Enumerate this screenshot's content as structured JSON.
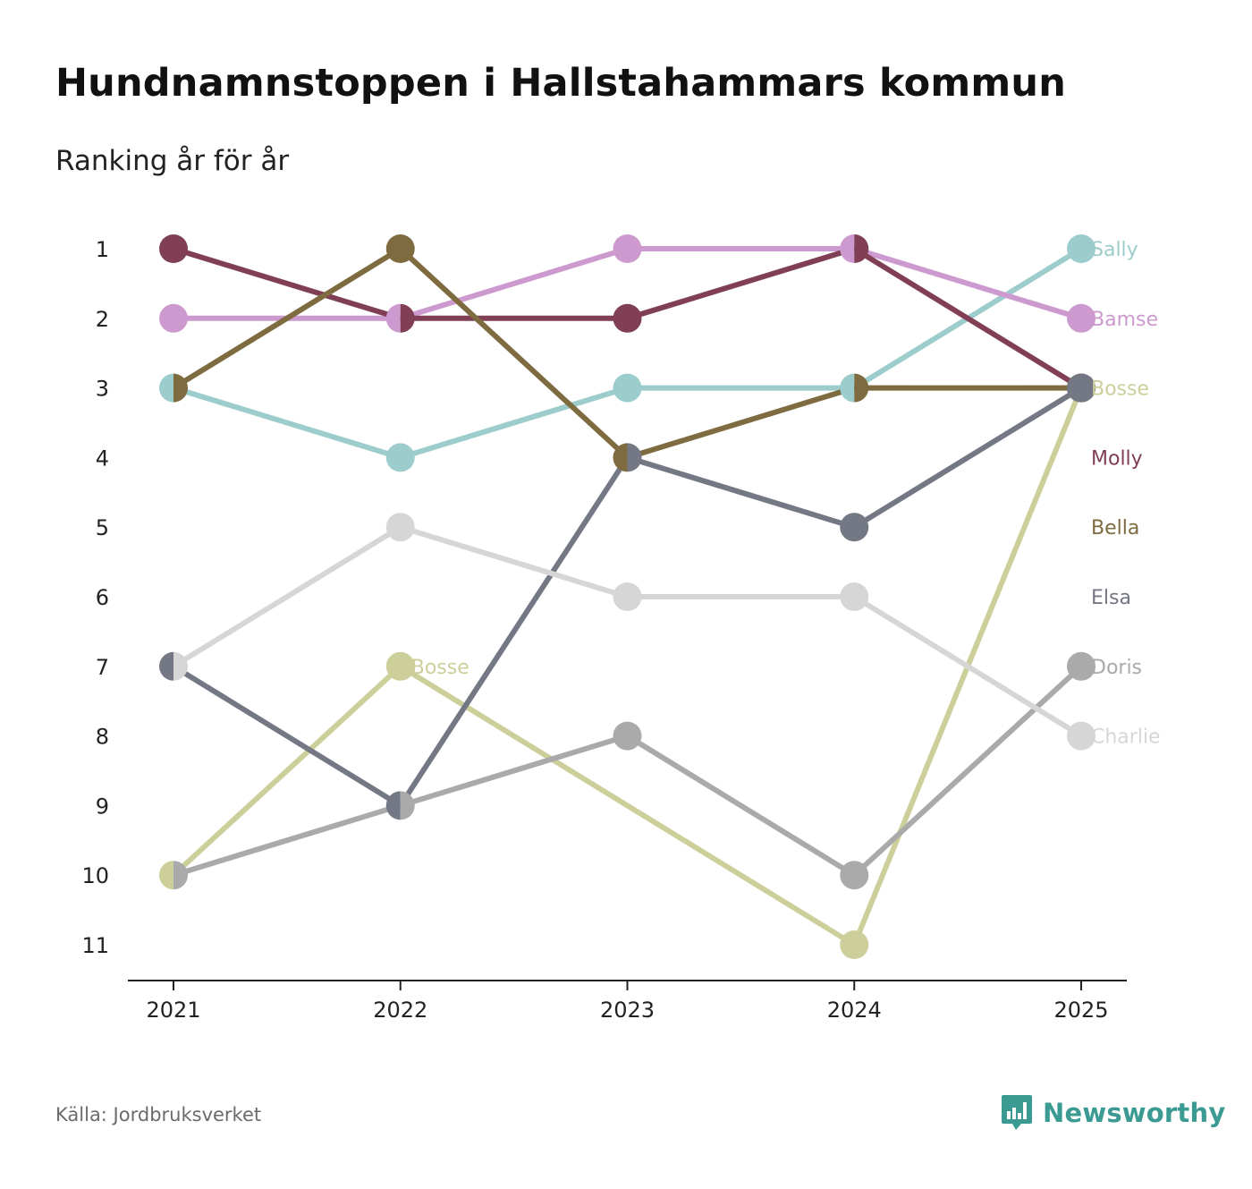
{
  "header": {
    "title": "Hundnamnstoppen i Hallstahammars kommun",
    "subtitle": "Ranking år för år"
  },
  "footer": {
    "source": "Källa: Jordbruksverket",
    "brand": "Newsworthy",
    "brand_color": "#3b9b93",
    "brand_icon": "bar-chart-speech-bubble-icon"
  },
  "chart_data": {
    "type": "line",
    "title": "Hundnamnstoppen i Hallstahammars kommun",
    "subtitle": "Ranking år för år",
    "xlabel": "",
    "ylabel": "",
    "x": [
      2021,
      2022,
      2023,
      2024,
      2025
    ],
    "y_ticks": [
      1,
      2,
      3,
      4,
      5,
      6,
      7,
      8,
      9,
      10,
      11
    ],
    "ylim": [
      11,
      1
    ],
    "y_inverted": true,
    "grid": false,
    "series": [
      {
        "name": "Sally",
        "color": "#9ccccb",
        "values": [
          3,
          4,
          3,
          3,
          1
        ]
      },
      {
        "name": "Bamse",
        "color": "#cd9acf",
        "values": [
          2,
          2,
          1,
          1,
          2
        ]
      },
      {
        "name": "Bosse",
        "color": "#cdcf9b",
        "values": [
          10,
          7,
          null,
          11,
          3
        ]
      },
      {
        "name": "Molly",
        "color": "#803f55",
        "values": [
          1,
          2,
          2,
          1,
          3
        ]
      },
      {
        "name": "Bella",
        "color": "#7e6b3f",
        "values": [
          3,
          1,
          4,
          3,
          3
        ]
      },
      {
        "name": "Elsa",
        "color": "#747884",
        "values": [
          7,
          9,
          4,
          5,
          3
        ]
      },
      {
        "name": "Doris",
        "color": "#aaaaaa",
        "values": [
          10,
          9,
          8,
          10,
          7
        ]
      },
      {
        "name": "Charlie",
        "color": "#d6d6d6",
        "values": [
          7,
          5,
          6,
          6,
          8
        ]
      }
    ],
    "annotations": [
      {
        "text": "Bosse",
        "x": 2022,
        "y": 7,
        "color": "#cdcf9b"
      }
    ],
    "end_labels": [
      {
        "text": "Sally",
        "rank": 1,
        "color": "#9ccccb"
      },
      {
        "text": "Bamse",
        "rank": 2,
        "color": "#cd9acf"
      },
      {
        "text": "Bosse",
        "rank": 3,
        "color": "#cdcf9b"
      },
      {
        "text": "Molly",
        "rank": 4,
        "color": "#803f55"
      },
      {
        "text": "Bella",
        "rank": 5,
        "color": "#7e6b3f"
      },
      {
        "text": "Elsa",
        "rank": 6,
        "color": "#747884"
      },
      {
        "text": "Doris",
        "rank": 7,
        "color": "#aaaaaa"
      },
      {
        "text": "Charlie",
        "rank": 8,
        "color": "#d6d6d6"
      }
    ]
  }
}
